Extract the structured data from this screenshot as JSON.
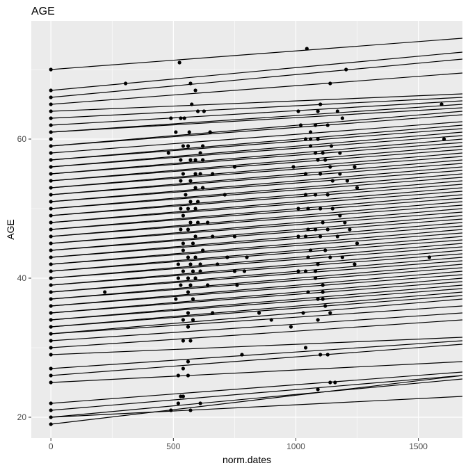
{
  "chart_data": {
    "type": "scatter",
    "title": "AGE",
    "xlabel": "norm.dates",
    "ylabel": "AGE",
    "xlim": [
      -80,
      1680
    ],
    "ylim": [
      17,
      77
    ],
    "x_ticks": [
      0,
      500,
      1000,
      1500
    ],
    "y_ticks": [
      20,
      40,
      60
    ],
    "grid": true,
    "background": "#ebebeb",
    "grid_color": "#ffffff",
    "point_color": "#000000",
    "line_color": "#000000",
    "points": [
      [
        0,
        70
      ],
      [
        525,
        71
      ],
      [
        1045,
        73
      ],
      [
        1205,
        70
      ],
      [
        305,
        68
      ],
      [
        570,
        68
      ],
      [
        590,
        67
      ],
      [
        1140,
        68
      ],
      [
        575,
        65
      ],
      [
        1100,
        65
      ],
      [
        1595,
        65
      ],
      [
        490,
        63
      ],
      [
        530,
        63
      ],
      [
        545,
        63
      ],
      [
        600,
        64
      ],
      [
        625,
        64
      ],
      [
        1010,
        64
      ],
      [
        1090,
        64
      ],
      [
        1170,
        64
      ],
      [
        1190,
        63
      ],
      [
        1080,
        62
      ],
      [
        1130,
        62
      ],
      [
        510,
        61
      ],
      [
        565,
        61
      ],
      [
        650,
        61
      ],
      [
        1020,
        62
      ],
      [
        1060,
        61
      ],
      [
        1605,
        60
      ],
      [
        1040,
        60
      ],
      [
        1060,
        60
      ],
      [
        1090,
        60
      ],
      [
        1145,
        59
      ],
      [
        1060,
        59
      ],
      [
        480,
        58
      ],
      [
        540,
        59
      ],
      [
        560,
        59
      ],
      [
        620,
        59
      ],
      [
        610,
        58
      ],
      [
        1080,
        58
      ],
      [
        1110,
        58
      ],
      [
        1180,
        58
      ],
      [
        530,
        57
      ],
      [
        570,
        57
      ],
      [
        590,
        57
      ],
      [
        620,
        57
      ],
      [
        1090,
        57
      ],
      [
        1120,
        57
      ],
      [
        1140,
        56
      ],
      [
        990,
        56
      ],
      [
        1040,
        55
      ],
      [
        1100,
        55
      ],
      [
        1150,
        54
      ],
      [
        1240,
        56
      ],
      [
        540,
        55
      ],
      [
        590,
        55
      ],
      [
        610,
        55
      ],
      [
        660,
        55
      ],
      [
        750,
        56
      ],
      [
        1180,
        55
      ],
      [
        530,
        54
      ],
      [
        570,
        54
      ],
      [
        590,
        53
      ],
      [
        620,
        53
      ],
      [
        710,
        52
      ],
      [
        1210,
        54
      ],
      [
        1250,
        53
      ],
      [
        1040,
        52
      ],
      [
        1080,
        52
      ],
      [
        1130,
        52
      ],
      [
        550,
        52
      ],
      [
        570,
        51
      ],
      [
        600,
        51
      ],
      [
        530,
        50
      ],
      [
        560,
        50
      ],
      [
        590,
        50
      ],
      [
        1010,
        50
      ],
      [
        1050,
        50
      ],
      [
        1100,
        50
      ],
      [
        1150,
        50
      ],
      [
        1180,
        49
      ],
      [
        540,
        49
      ],
      [
        570,
        48
      ],
      [
        600,
        48
      ],
      [
        640,
        48
      ],
      [
        1110,
        48
      ],
      [
        1200,
        48
      ],
      [
        1050,
        47
      ],
      [
        1080,
        47
      ],
      [
        1130,
        47
      ],
      [
        1170,
        46
      ],
      [
        1220,
        47
      ],
      [
        530,
        47
      ],
      [
        560,
        47
      ],
      [
        590,
        46
      ],
      [
        660,
        46
      ],
      [
        750,
        46
      ],
      [
        1100,
        46
      ],
      [
        1010,
        46
      ],
      [
        1040,
        46
      ],
      [
        540,
        45
      ],
      [
        580,
        45
      ],
      [
        620,
        44
      ],
      [
        1060,
        44
      ],
      [
        1120,
        44
      ],
      [
        1250,
        45
      ],
      [
        540,
        44
      ],
      [
        560,
        43
      ],
      [
        590,
        43
      ],
      [
        720,
        43
      ],
      [
        800,
        43
      ],
      [
        1050,
        43
      ],
      [
        1140,
        43
      ],
      [
        1190,
        43
      ],
      [
        1545,
        43
      ],
      [
        520,
        42
      ],
      [
        570,
        42
      ],
      [
        610,
        42
      ],
      [
        680,
        42
      ],
      [
        1090,
        42
      ],
      [
        1240,
        42
      ],
      [
        540,
        41
      ],
      [
        580,
        41
      ],
      [
        610,
        41
      ],
      [
        750,
        41
      ],
      [
        790,
        41
      ],
      [
        1010,
        41
      ],
      [
        1040,
        41
      ],
      [
        1080,
        41
      ],
      [
        520,
        40
      ],
      [
        560,
        40
      ],
      [
        590,
        40
      ],
      [
        1080,
        40
      ],
      [
        530,
        39
      ],
      [
        570,
        39
      ],
      [
        640,
        39
      ],
      [
        760,
        39
      ],
      [
        1110,
        39
      ],
      [
        220,
        38
      ],
      [
        560,
        38
      ],
      [
        1050,
        38
      ],
      [
        1110,
        38
      ],
      [
        510,
        37
      ],
      [
        580,
        37
      ],
      [
        1110,
        37
      ],
      [
        1090,
        37
      ],
      [
        1120,
        36
      ],
      [
        560,
        35
      ],
      [
        660,
        35
      ],
      [
        850,
        35
      ],
      [
        1030,
        35
      ],
      [
        1140,
        35
      ],
      [
        540,
        34
      ],
      [
        580,
        34
      ],
      [
        900,
        34
      ],
      [
        1090,
        34
      ],
      [
        560,
        33
      ],
      [
        560,
        33
      ],
      [
        980,
        33
      ],
      [
        540,
        31
      ],
      [
        570,
        31
      ],
      [
        1040,
        30
      ],
      [
        780,
        29
      ],
      [
        1100,
        29
      ],
      [
        1130,
        29
      ],
      [
        560,
        28
      ],
      [
        540,
        27
      ],
      [
        520,
        26
      ],
      [
        560,
        26
      ],
      [
        1140,
        25
      ],
      [
        1160,
        25
      ],
      [
        1090,
        24
      ],
      [
        530,
        23
      ],
      [
        540,
        23
      ],
      [
        520,
        22
      ],
      [
        610,
        22
      ],
      [
        570,
        21
      ],
      [
        490,
        21
      ],
      [
        0,
        67
      ],
      [
        0,
        66
      ],
      [
        0,
        65
      ],
      [
        0,
        64
      ],
      [
        0,
        63
      ],
      [
        0,
        62
      ],
      [
        0,
        61
      ],
      [
        0,
        60
      ],
      [
        0,
        59
      ],
      [
        0,
        58
      ],
      [
        0,
        57
      ],
      [
        0,
        56
      ],
      [
        0,
        55
      ],
      [
        0,
        54
      ],
      [
        0,
        53
      ],
      [
        0,
        52
      ],
      [
        0,
        51
      ],
      [
        0,
        50
      ],
      [
        0,
        49
      ],
      [
        0,
        48
      ],
      [
        0,
        47
      ],
      [
        0,
        46
      ],
      [
        0,
        45
      ],
      [
        0,
        44
      ],
      [
        0,
        43
      ],
      [
        0,
        42
      ],
      [
        0,
        41
      ],
      [
        0,
        40
      ],
      [
        0,
        39
      ],
      [
        0,
        38
      ],
      [
        0,
        37
      ],
      [
        0,
        36
      ],
      [
        0,
        35
      ],
      [
        0,
        34
      ],
      [
        0,
        33
      ],
      [
        0,
        32
      ],
      [
        0,
        31
      ],
      [
        0,
        30
      ],
      [
        0,
        29
      ],
      [
        0,
        27
      ],
      [
        0,
        26
      ],
      [
        0,
        25
      ],
      [
        0,
        22
      ],
      [
        0,
        21
      ],
      [
        0,
        20
      ],
      [
        0,
        19
      ]
    ],
    "fit_lines": [
      [
        0,
        70,
        1680,
        74.5
      ],
      [
        0,
        67,
        1680,
        72.5
      ],
      [
        0,
        66,
        1680,
        71.5
      ],
      [
        0,
        65,
        1680,
        69.5
      ],
      [
        0,
        64,
        1680,
        66.5
      ],
      [
        0,
        63,
        1680,
        66
      ],
      [
        0,
        62,
        1680,
        65.5
      ],
      [
        0,
        61,
        1680,
        65
      ],
      [
        0,
        61,
        1680,
        64.5
      ],
      [
        0,
        59,
        1680,
        64
      ],
      [
        0,
        59,
        1680,
        63.5
      ],
      [
        0,
        58,
        1680,
        62.5
      ],
      [
        0,
        57,
        1680,
        62
      ],
      [
        0,
        57,
        1680,
        61.5
      ],
      [
        0,
        56,
        1680,
        61
      ],
      [
        0,
        56,
        1680,
        60.5
      ],
      [
        0,
        55,
        1680,
        60
      ],
      [
        0,
        55,
        1680,
        59.5
      ],
      [
        0,
        54,
        1680,
        59
      ],
      [
        0,
        54,
        1680,
        58.5
      ],
      [
        0,
        53,
        1680,
        58
      ],
      [
        0,
        53,
        1680,
        57.5
      ],
      [
        0,
        52,
        1680,
        57
      ],
      [
        0,
        52,
        1680,
        56.5
      ],
      [
        0,
        51,
        1680,
        56
      ],
      [
        0,
        51,
        1680,
        55.5
      ],
      [
        0,
        50,
        1680,
        55
      ],
      [
        0,
        50,
        1680,
        54.5
      ],
      [
        0,
        49,
        1680,
        54
      ],
      [
        0,
        49,
        1680,
        53.5
      ],
      [
        0,
        48,
        1680,
        53
      ],
      [
        0,
        48,
        1680,
        52.5
      ],
      [
        0,
        47,
        1680,
        52
      ],
      [
        0,
        47,
        1680,
        51.5
      ],
      [
        0,
        46,
        1680,
        51
      ],
      [
        0,
        46,
        1680,
        50.5
      ],
      [
        0,
        45,
        1680,
        50
      ],
      [
        0,
        45,
        1680,
        49.5
      ],
      [
        0,
        44,
        1680,
        49
      ],
      [
        0,
        44,
        1680,
        48.5
      ],
      [
        0,
        43,
        1680,
        48
      ],
      [
        0,
        43,
        1680,
        47.5
      ],
      [
        0,
        42,
        1680,
        47
      ],
      [
        0,
        42,
        1680,
        46.5
      ],
      [
        0,
        41,
        1680,
        46
      ],
      [
        0,
        41,
        1680,
        45.5
      ],
      [
        0,
        40,
        1680,
        45
      ],
      [
        0,
        40,
        1680,
        44.5
      ],
      [
        0,
        39,
        1680,
        44
      ],
      [
        0,
        39,
        1680,
        43.5
      ],
      [
        0,
        38,
        1680,
        43
      ],
      [
        0,
        38,
        1680,
        42.5
      ],
      [
        0,
        37,
        1680,
        42
      ],
      [
        0,
        37,
        1680,
        41.5
      ],
      [
        0,
        36,
        1680,
        41
      ],
      [
        0,
        36,
        1680,
        40.5
      ],
      [
        0,
        35,
        1680,
        40
      ],
      [
        0,
        35,
        1680,
        39.5
      ],
      [
        0,
        34,
        1680,
        39
      ],
      [
        0,
        34,
        1680,
        38.5
      ],
      [
        0,
        33,
        1680,
        38
      ],
      [
        0,
        33,
        1680,
        37.5
      ],
      [
        0,
        32,
        1680,
        37
      ],
      [
        0,
        32,
        1680,
        36
      ],
      [
        0,
        31,
        1680,
        35
      ],
      [
        0,
        30,
        1680,
        34
      ],
      [
        0,
        29,
        1680,
        31.5
      ],
      [
        0,
        27,
        1680,
        31
      ],
      [
        0,
        26,
        1680,
        30.5
      ],
      [
        0,
        25,
        1680,
        28
      ],
      [
        0,
        22,
        1680,
        26.5
      ],
      [
        0,
        21,
        1680,
        26
      ],
      [
        0,
        20,
        1680,
        25.5
      ],
      [
        0,
        20,
        1680,
        23
      ],
      [
        0,
        19,
        1680,
        26
      ]
    ]
  }
}
